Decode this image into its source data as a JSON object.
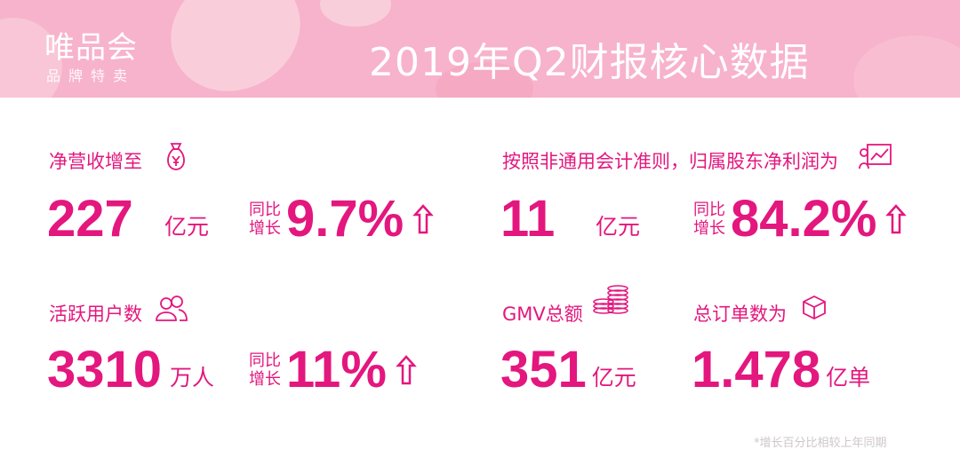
{
  "header": {
    "logo": "唯品会",
    "logo_sub": "品牌特卖",
    "title": "2019年Q2财报核心数据"
  },
  "revenue": {
    "label": "净营收增至",
    "value": "227",
    "unit": "亿元",
    "yoy_label_1": "同比",
    "yoy_label_2": "增长",
    "yoy": "9.7%",
    "icon": "money-bag-icon"
  },
  "profit": {
    "label": "按照非通用会计准则，归属股东净利润为",
    "value": "11",
    "unit": "亿元",
    "yoy_label_1": "同比",
    "yoy_label_2": "增长",
    "yoy": "84.2%",
    "icon": "chart-report-icon"
  },
  "users": {
    "label": "活跃用户数",
    "value": "3310",
    "unit": "万人",
    "yoy_label_1": "同比",
    "yoy_label_2": "增长",
    "yoy": "11%",
    "icon": "users-icon"
  },
  "gmv": {
    "label": "GMV总额",
    "value": "351",
    "unit": "亿元",
    "icon": "coins-icon"
  },
  "orders": {
    "label": "总订单数为",
    "value": "1.478",
    "unit": "亿单",
    "icon": "box-icon"
  },
  "footnote": "*增长百分比相较上年同期",
  "colors": {
    "accent": "#e3177e",
    "header_bg": "#f7b3cb"
  }
}
